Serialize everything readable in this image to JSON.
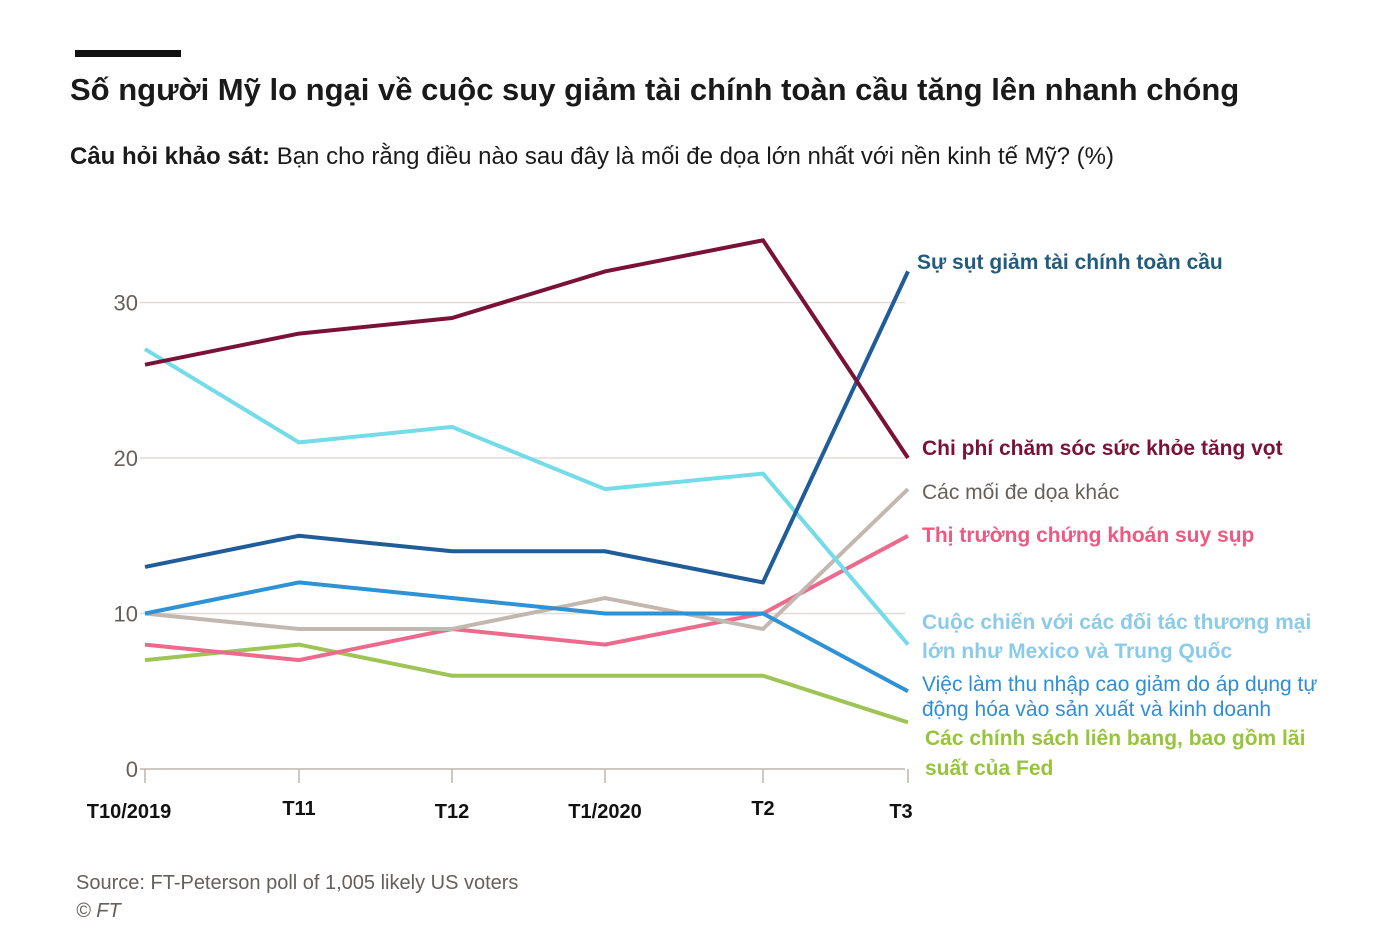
{
  "header": {
    "title": "Số người Mỹ lo ngại về cuộc suy giảm tài chính toàn cầu tăng lên nhanh chóng",
    "subtitle_bold": "Câu hỏi khảo sát:",
    "subtitle_rest": " Bạn cho rằng điều nào sau đây là mối đe dọa lớn nhất với nền kinh tế Mỹ? (%)"
  },
  "footer": {
    "source": "Source: FT-Peterson poll of 1,005 likely US voters",
    "credit": "© FT"
  },
  "chart_data": {
    "type": "line",
    "title": "Số người Mỹ lo ngại về cuộc suy giảm tài chính toàn cầu tăng lên nhanh chóng",
    "categories": [
      "T10/2019",
      "T11",
      "T12",
      "T1/2020",
      "T2",
      "T3"
    ],
    "ylim": [
      0,
      35
    ],
    "yticks": [
      0,
      10,
      20,
      30
    ],
    "grid": true,
    "legend": "direct labels at right end of lines",
    "series": [
      {
        "name": "Sự sụt giảm tài chính toàn cầu",
        "color": "#1f5c99",
        "label_color": "#1f5c80",
        "label_bold": true,
        "values": [
          13,
          15,
          14,
          14,
          12,
          32
        ]
      },
      {
        "name": "Chi phí chăm sóc sức khỏe tăng vọt",
        "color": "#7a1238",
        "label_color": "#7a1238",
        "label_bold": true,
        "values": [
          26,
          28,
          29,
          32,
          34,
          20
        ]
      },
      {
        "name": "Các mối đe dọa khác",
        "color": "#c2b8b0",
        "label_color": "#66605c",
        "label_bold": false,
        "values": [
          10,
          9,
          9,
          11,
          9,
          18
        ]
      },
      {
        "name": "Thị trường chứng khoán suy sụp",
        "color": "#ec6a8e",
        "label_color": "#ec5a82",
        "label_bold": true,
        "values": [
          8,
          7,
          9,
          8,
          10,
          15
        ]
      },
      {
        "name": "Cuộc chiến với các đối tác thương mại lớn như Mexico và Trung Quốc",
        "color": "#74dbe8",
        "label_color": "#8ccbe8",
        "label_bold": true,
        "label_lines": [
          "Cuộc chiến với các đối tác thương mại",
          "lớn như Mexico và Trung Quốc"
        ],
        "values": [
          27,
          21,
          22,
          18,
          19,
          8
        ]
      },
      {
        "name": "Việc làm thu nhập cao giảm do áp dụng tự động hóa vào sản xuất và kinh doanh",
        "color": "#2e92d6",
        "label_color": "#2e8fd6",
        "label_bold": false,
        "label_lines": [
          "Việc làm thu nhập cao giảm do áp dụng tự",
          "động hóa vào sản xuất và kinh doanh"
        ],
        "values": [
          10,
          12,
          11,
          10,
          10,
          5
        ]
      },
      {
        "name": "Các chính sách liên bang, bao gồm lãi suất của Fed",
        "color": "#9dc454",
        "label_color": "#96c43a",
        "label_bold": true,
        "label_lines": [
          "Các chính sách liên bang, bao gồm lãi",
          "suất của Fed"
        ],
        "values": [
          7,
          8,
          6,
          6,
          6,
          3
        ]
      }
    ]
  }
}
